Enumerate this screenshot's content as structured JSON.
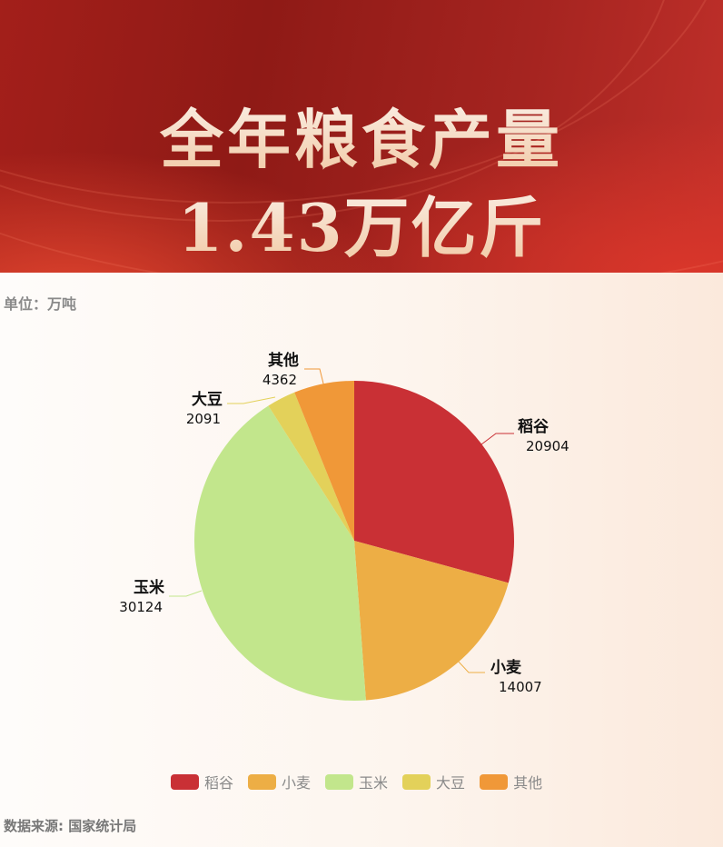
{
  "header": {
    "title": "全年粮食产量",
    "subtitle": "1.43万亿斤"
  },
  "unit_label": "单位：万吨",
  "source_label": "数据来源: 国家统计局",
  "chart_data": {
    "type": "pie",
    "categories": [
      "稻谷",
      "小麦",
      "玉米",
      "大豆",
      "其他"
    ],
    "values": [
      20904,
      14007,
      30124,
      2091,
      4362
    ],
    "colors": [
      "#c93035",
      "#edae45",
      "#c2e68c",
      "#e3d15a",
      "#f09838"
    ],
    "start": "top",
    "direction": "clockwise",
    "legend_position": "bottom"
  }
}
